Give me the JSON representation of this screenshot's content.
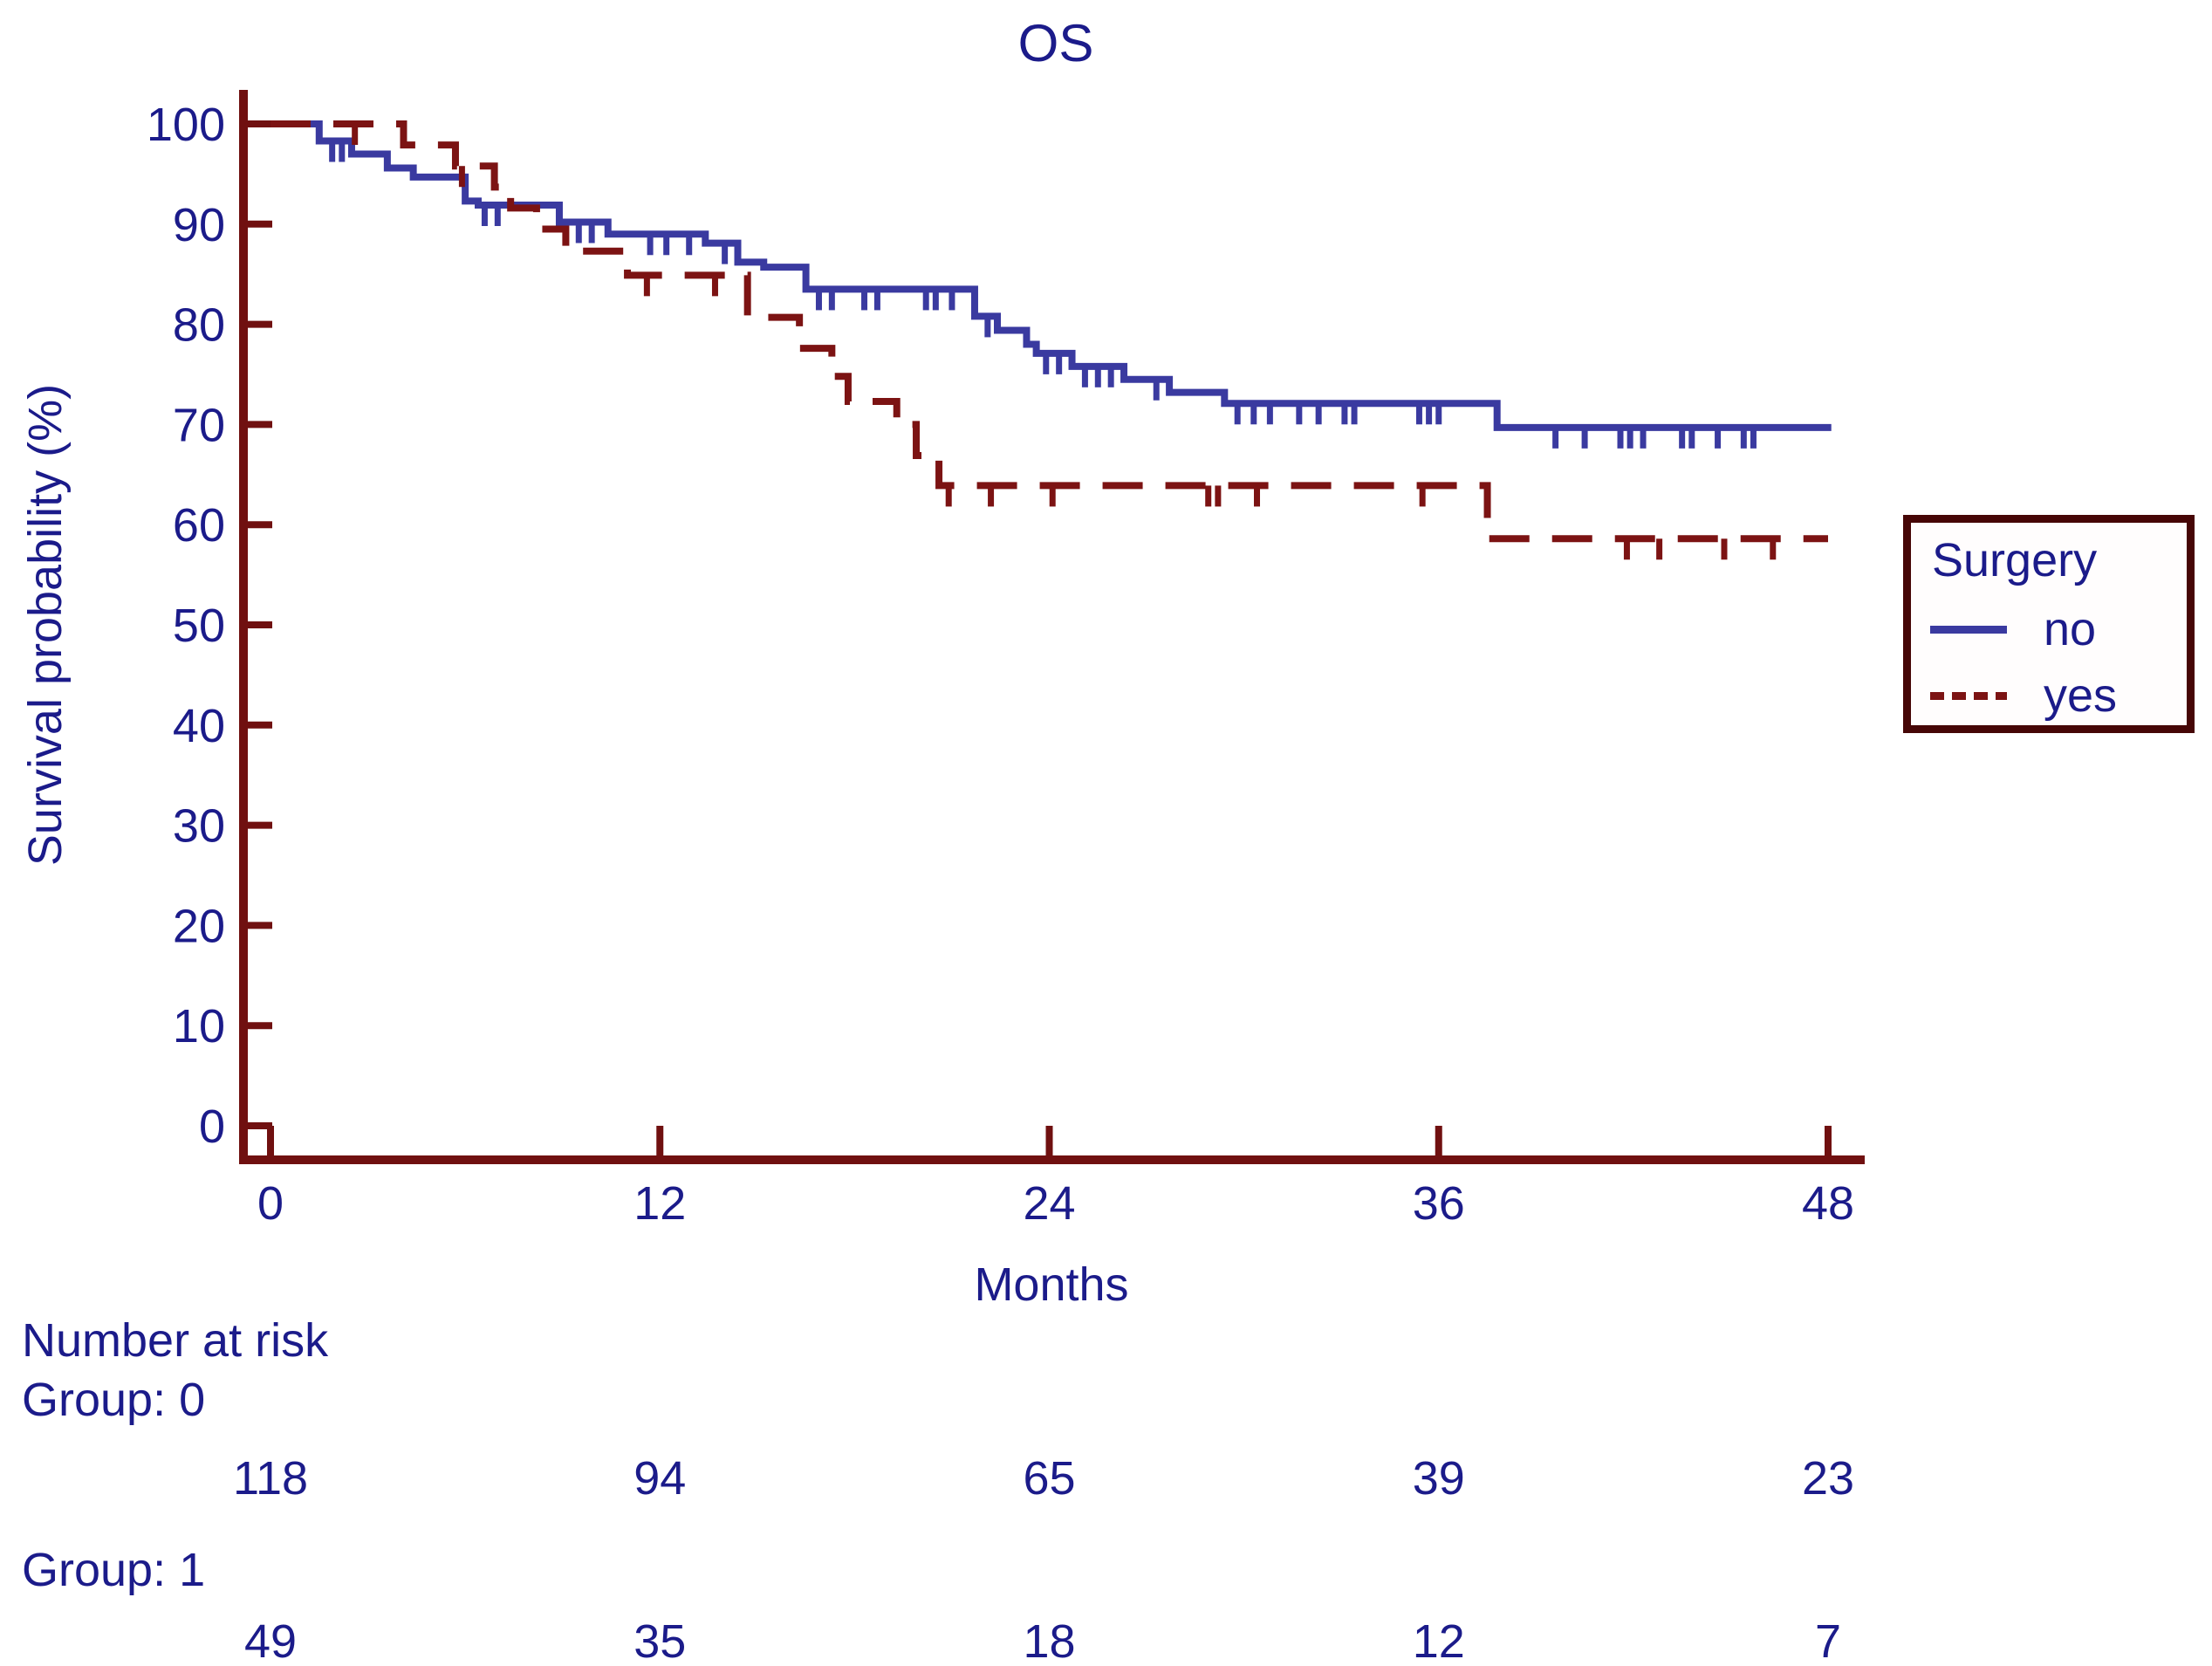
{
  "chart_data": {
    "type": "line",
    "subtype": "kaplan-meier-step",
    "title": "OS",
    "xlabel": "Months",
    "ylabel": "Survival probability (%)",
    "xlim": [
      0,
      48
    ],
    "ylim": [
      0,
      100
    ],
    "x_ticks": [
      0,
      12,
      24,
      36,
      48
    ],
    "y_ticks": [
      0,
      10,
      20,
      30,
      40,
      50,
      60,
      70,
      80,
      90,
      100
    ],
    "grid": false,
    "legend": {
      "title": "Surgery",
      "position": "right",
      "entries": [
        {
          "label": "no",
          "line": "solid"
        },
        {
          "label": "yes",
          "line": "dashed"
        }
      ]
    },
    "series": [
      {
        "name": "no",
        "group": "Group: 0",
        "color": "#3a3aa0",
        "line": "solid",
        "end": 48.1,
        "steps": [
          [
            0,
            100
          ],
          [
            1.5,
            98.3
          ],
          [
            2.5,
            97.0
          ],
          [
            3.6,
            95.6
          ],
          [
            4.4,
            94.7
          ],
          [
            6.0,
            92.3
          ],
          [
            6.4,
            91.9
          ],
          [
            8.9,
            90.2
          ],
          [
            10.4,
            89.0
          ],
          [
            13.4,
            88.1
          ],
          [
            14.4,
            86.2
          ],
          [
            15.2,
            85.7
          ],
          [
            16.5,
            83.5
          ],
          [
            21.7,
            80.8
          ],
          [
            22.4,
            79.4
          ],
          [
            23.3,
            78.0
          ],
          [
            23.6,
            77.1
          ],
          [
            24.7,
            75.8
          ],
          [
            26.3,
            74.5
          ],
          [
            27.7,
            73.2
          ],
          [
            29.4,
            72.1
          ],
          [
            37.8,
            69.7
          ]
        ],
        "censor_times": [
          1.9,
          2.2,
          6.6,
          7.0,
          9.5,
          9.9,
          11.7,
          12.2,
          12.9,
          14.0,
          16.9,
          17.3,
          18.3,
          18.7,
          20.2,
          20.5,
          21.0,
          22.1,
          23.9,
          24.3,
          25.1,
          25.5,
          25.9,
          27.3,
          29.8,
          30.3,
          30.8,
          31.7,
          32.3,
          33.1,
          33.4,
          35.4,
          35.7,
          36.0,
          39.6,
          40.5,
          41.6,
          41.9,
          42.3,
          43.5,
          43.8,
          44.6,
          45.4,
          45.7
        ]
      },
      {
        "name": "yes",
        "group": "Group: 1",
        "color": "#7c1313",
        "line": "dashed",
        "end": 48.0,
        "steps": [
          [
            0,
            100
          ],
          [
            4.1,
            97.9
          ],
          [
            5.7,
            95.8
          ],
          [
            6.9,
            93.7
          ],
          [
            7.4,
            91.6
          ],
          [
            8.2,
            89.5
          ],
          [
            9.1,
            87.3
          ],
          [
            11.0,
            84.9
          ],
          [
            14.7,
            80.7
          ],
          [
            16.3,
            77.6
          ],
          [
            17.3,
            74.8
          ],
          [
            17.8,
            72.3
          ],
          [
            19.3,
            70.0
          ],
          [
            19.9,
            66.9
          ],
          [
            20.6,
            63.9
          ],
          [
            37.5,
            58.6
          ]
        ],
        "censor_times": [
          2.6,
          5.9,
          11.6,
          13.7,
          20.9,
          22.2,
          24.1,
          28.9,
          29.2,
          30.4,
          35.5,
          41.8,
          42.8,
          44.8,
          46.3
        ]
      }
    ],
    "risk_table": {
      "heading": "Number at risk",
      "months": [
        0,
        12,
        24,
        36,
        48
      ],
      "groups": [
        {
          "label": "Group: 0",
          "counts": [
            118,
            94,
            65,
            39,
            23
          ]
        },
        {
          "label": "Group: 1",
          "counts": [
            49,
            35,
            18,
            12,
            7
          ]
        }
      ]
    },
    "colors": {
      "text": "#1b1b8a",
      "axis": "#701010",
      "curve_no": "#3a3aa0",
      "curve_yes": "#7c1313",
      "legend_border": "#460606",
      "background": "#ffffff"
    }
  }
}
